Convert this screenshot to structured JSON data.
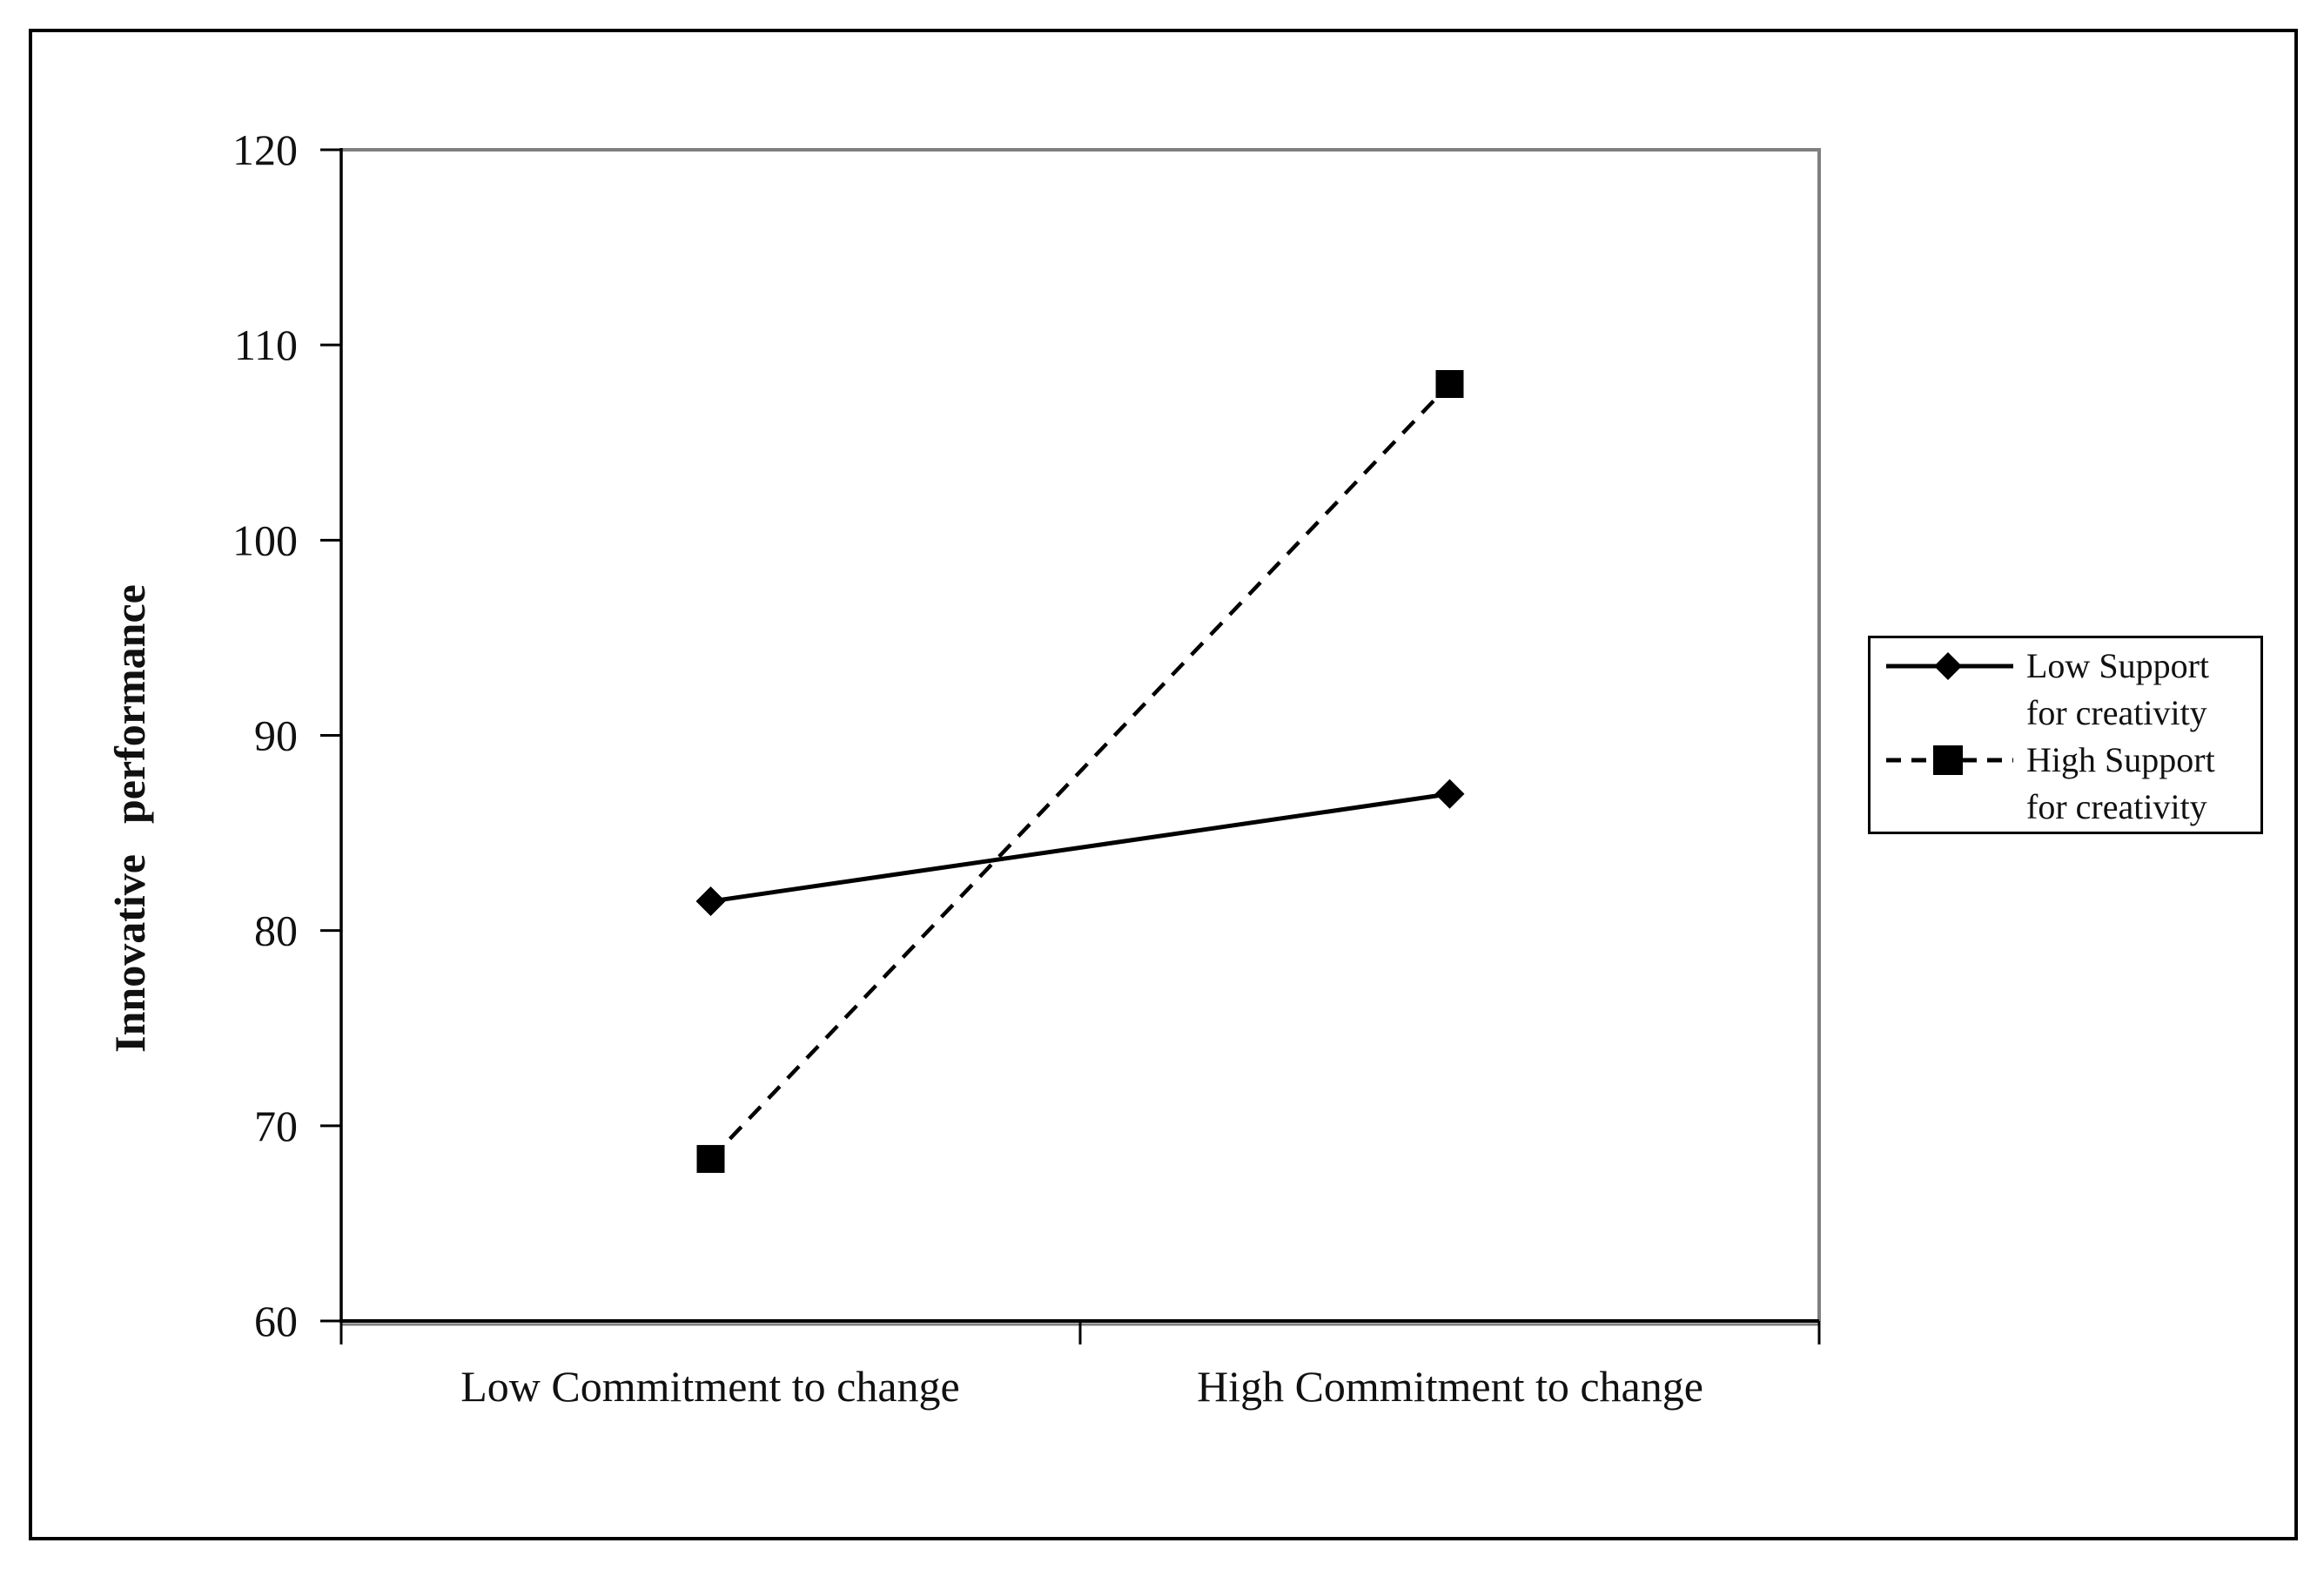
{
  "chart_data": {
    "type": "line",
    "title": "",
    "categories": [
      "Low Commitment to change",
      "High Commitment to change"
    ],
    "series": [
      {
        "name": "Low Support for creativity",
        "values": [
          81.5,
          87
        ],
        "line_style": "solid",
        "marker": "diamond"
      },
      {
        "name": "High Support for creativity",
        "values": [
          68.3,
          108
        ],
        "line_style": "dashed",
        "marker": "square"
      }
    ],
    "xlabel": "",
    "ylabel": "Innovative performance",
    "ylim": [
      60,
      120
    ],
    "yticks": [
      120,
      110,
      100,
      90,
      80,
      70,
      60
    ],
    "grid": "off",
    "legend_position": "right"
  },
  "legend": {
    "entries": [
      {
        "line1": "Low Support",
        "line2": "for creativity"
      },
      {
        "line1": "High Support",
        "line2": "for creativity"
      }
    ]
  },
  "colors": {
    "series": "#000000",
    "axis": "#000000",
    "plot_border": "#7f7f7f",
    "figure_border": "#000000",
    "background": "#ffffff",
    "text": "#111111"
  }
}
